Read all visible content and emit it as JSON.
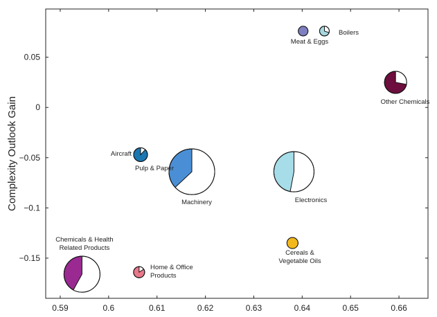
{
  "chart_data": {
    "type": "scatter",
    "title": "",
    "xlabel": "",
    "ylabel": "Complexity Outlook Gain",
    "xlim": [
      0.587,
      0.666
    ],
    "ylim": [
      -0.19,
      0.098
    ],
    "grid": false,
    "x_ticks": [
      "0.59",
      "0.6",
      "0.61",
      "0.62",
      "0.63",
      "0.64",
      "0.65",
      "0.66"
    ],
    "y_ticks": [
      "0.05",
      "0",
      "−0.05",
      "−0.1",
      "−0.15"
    ],
    "points": [
      {
        "label": [
          "Meat & Eggs"
        ],
        "x": 0.6402,
        "y": 0.076,
        "share": 1.0,
        "color": "#7e7fc0"
      },
      {
        "label": [
          "Boilers"
        ],
        "x": 0.6446,
        "y": 0.076,
        "share": 0.7,
        "color": "#a8d8e0"
      },
      {
        "label": [
          "Other Chemicals"
        ],
        "x": 0.6593,
        "y": 0.025,
        "share": 0.72,
        "color": "#6e0e3e"
      },
      {
        "label": [
          "Aircraft"
        ],
        "x": 0.6066,
        "y": -0.047,
        "share": 0.88,
        "color": "#1b77b0"
      },
      {
        "label": [
          "Pulp & Paper"
        ],
        "x": 0.6142,
        "y": -0.061,
        "share": 1.0,
        "color": "#f26b2a"
      },
      {
        "label": [
          "Machinery"
        ],
        "x": 0.6172,
        "y": -0.064,
        "share": 0.37,
        "color": "#4a8fd6"
      },
      {
        "label": [
          "Electronics"
        ],
        "x": 0.6383,
        "y": -0.064,
        "share": 0.47,
        "color": "#a6dde8"
      },
      {
        "label": [
          "Cereals &",
          "Vegetable Oils"
        ],
        "x": 0.638,
        "y": -0.135,
        "share": 1.0,
        "color": "#f3b81e"
      },
      {
        "label": [
          "Chemicals & Health",
          "Related Products"
        ],
        "x": 0.5945,
        "y": -0.166,
        "share": 0.42,
        "color": "#9a2a92"
      },
      {
        "label": [
          "Home & Office",
          "Products"
        ],
        "x": 0.6063,
        "y": -0.164,
        "share": 0.84,
        "color": "#e8788a"
      }
    ]
  }
}
